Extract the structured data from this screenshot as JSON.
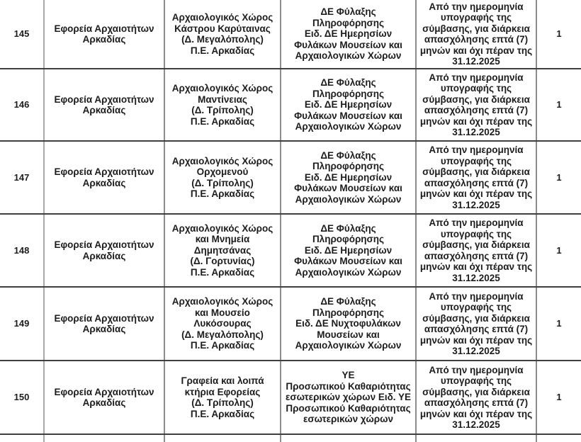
{
  "document": {
    "title_hint": "Πίνακας θέσεων εποχικού προσωπικού - Εφορεία Αρχαιοτήτων Αρκαδίας"
  },
  "table": {
    "columns": [
      "num",
      "agency",
      "location",
      "specialty",
      "duration",
      "count"
    ],
    "rows": [
      {
        "num": "145",
        "agency": "Εφορεία Αρχαιοτήτων\nΑρκαδίας",
        "location": "Αρχαιολογικός Χώρος\nΚάστρου Καρύταινας\n(Δ. Μεγαλόπολης)\nΠ.Ε. Αρκαδίας",
        "specialty": "ΔΕ Φύλαξης Πληροφόρησης\nΕιδ. ΔΕ Ημερησίων\nΦυλάκων Μουσείων και\nΑρχαιολογικών Χώρων",
        "duration": "Από την ημερομηνία\nυπογραφής της\nσύμβασης, για διάρκεια\nαπασχόλησης επτά (7)\nμηνών και όχι πέραν της\n31.12.2025",
        "count": "1"
      },
      {
        "num": "146",
        "agency": "Εφορεία Αρχαιοτήτων\nΑρκαδίας",
        "location": "Αρχαιολογικός Χώρος\nΜαντίνειας\n(Δ. Τρίπολης)\nΠ.Ε. Αρκαδίας",
        "specialty": "ΔΕ Φύλαξης Πληροφόρησης\nΕιδ. ΔΕ Ημερησίων\nΦυλάκων Μουσείων και\nΑρχαιολογικών Χώρων",
        "duration": "Από την ημερομηνία\nυπογραφής της\nσύμβασης, για διάρκεια\nαπασχόλησης επτά (7)\nμηνών και όχι πέραν της\n31.12.2025",
        "count": "1"
      },
      {
        "num": "147",
        "agency": "Εφορεία Αρχαιοτήτων\nΑρκαδίας",
        "location": "Αρχαιολογικός Χώρος\nΟρχομενού\n(Δ. Τρίπολης)\nΠ.Ε. Αρκαδίας",
        "specialty": "ΔΕ Φύλαξης Πληροφόρησης\nΕιδ. ΔΕ Ημερησίων\nΦυλάκων Μουσείων και\nΑρχαιολογικών Χώρων",
        "duration": "Από την ημερομηνία\nυπογραφής της\nσύμβασης, για διάρκεια\nαπασχόλησης επτά (7)\nμηνών και όχι πέραν της\n31.12.2025",
        "count": "1"
      },
      {
        "num": "148",
        "agency": "Εφορεία Αρχαιοτήτων\nΑρκαδίας",
        "location": "Αρχαιολογικός Χώρος\nκαι Μνημεία\nΔημητσάνας\n(Δ. Γορτυνίας)\nΠ.Ε. Αρκαδίας",
        "specialty": "ΔΕ Φύλαξης Πληροφόρησης\nΕιδ. ΔΕ Ημερησίων\nΦυλάκων Μουσείων και\nΑρχαιολογικών Χώρων",
        "duration": "Από την ημερομηνία\nυπογραφής της\nσύμβασης, για διάρκεια\nαπασχόλησης επτά (7)\nμηνών και όχι πέραν της\n31.12.2025",
        "count": "1"
      },
      {
        "num": "149",
        "agency": "Εφορεία Αρχαιοτήτων\nΑρκαδίας",
        "location": "Αρχαιολογικός Χώρος\nκαι Μουσείο\nΛυκόσουρας\n(Δ. Μεγαλόπολης)\nΠ.Ε. Αρκαδίας",
        "specialty": "ΔΕ Φύλαξης Πληροφόρησης\nΕιδ. ΔΕ Νυχτοφυλάκων\nΜουσείων και\nΑρχαιολογικών Χώρων",
        "duration": "Από την ημερομηνία\nυπογραφής της\nσύμβασης, για διάρκεια\nαπασχόλησης επτά (7)\nμηνών και όχι πέραν της\n31.12.2025",
        "count": "1"
      },
      {
        "num": "150",
        "agency": "Εφορεία Αρχαιοτήτων\nΑρκαδίας",
        "location": "Γραφεία και λοιπά\nκτήρια Εφορείας\n(Δ. Τρίπολης)\nΠ.Ε. Αρκαδίας",
        "specialty": "ΥΕ\nΠροσωπικού Καθαριότητας\nεσωτερικών χώρων Ειδ. ΥΕ\nΠροσωπικού Καθαριότητας\nεσωτερικών χώρων",
        "duration": "Από την ημερομηνία\nυπογραφής της\nσύμβασης, για διάρκεια\nαπασχόλησης επτά (7)\nμηνών και όχι πέραν της\n31.12.2025",
        "count": "1"
      }
    ]
  },
  "colors": {
    "row_border": "#3f3f3f",
    "column_border": "#8c8c8c",
    "text": "#1c1c1c",
    "background": "#ffffff"
  }
}
